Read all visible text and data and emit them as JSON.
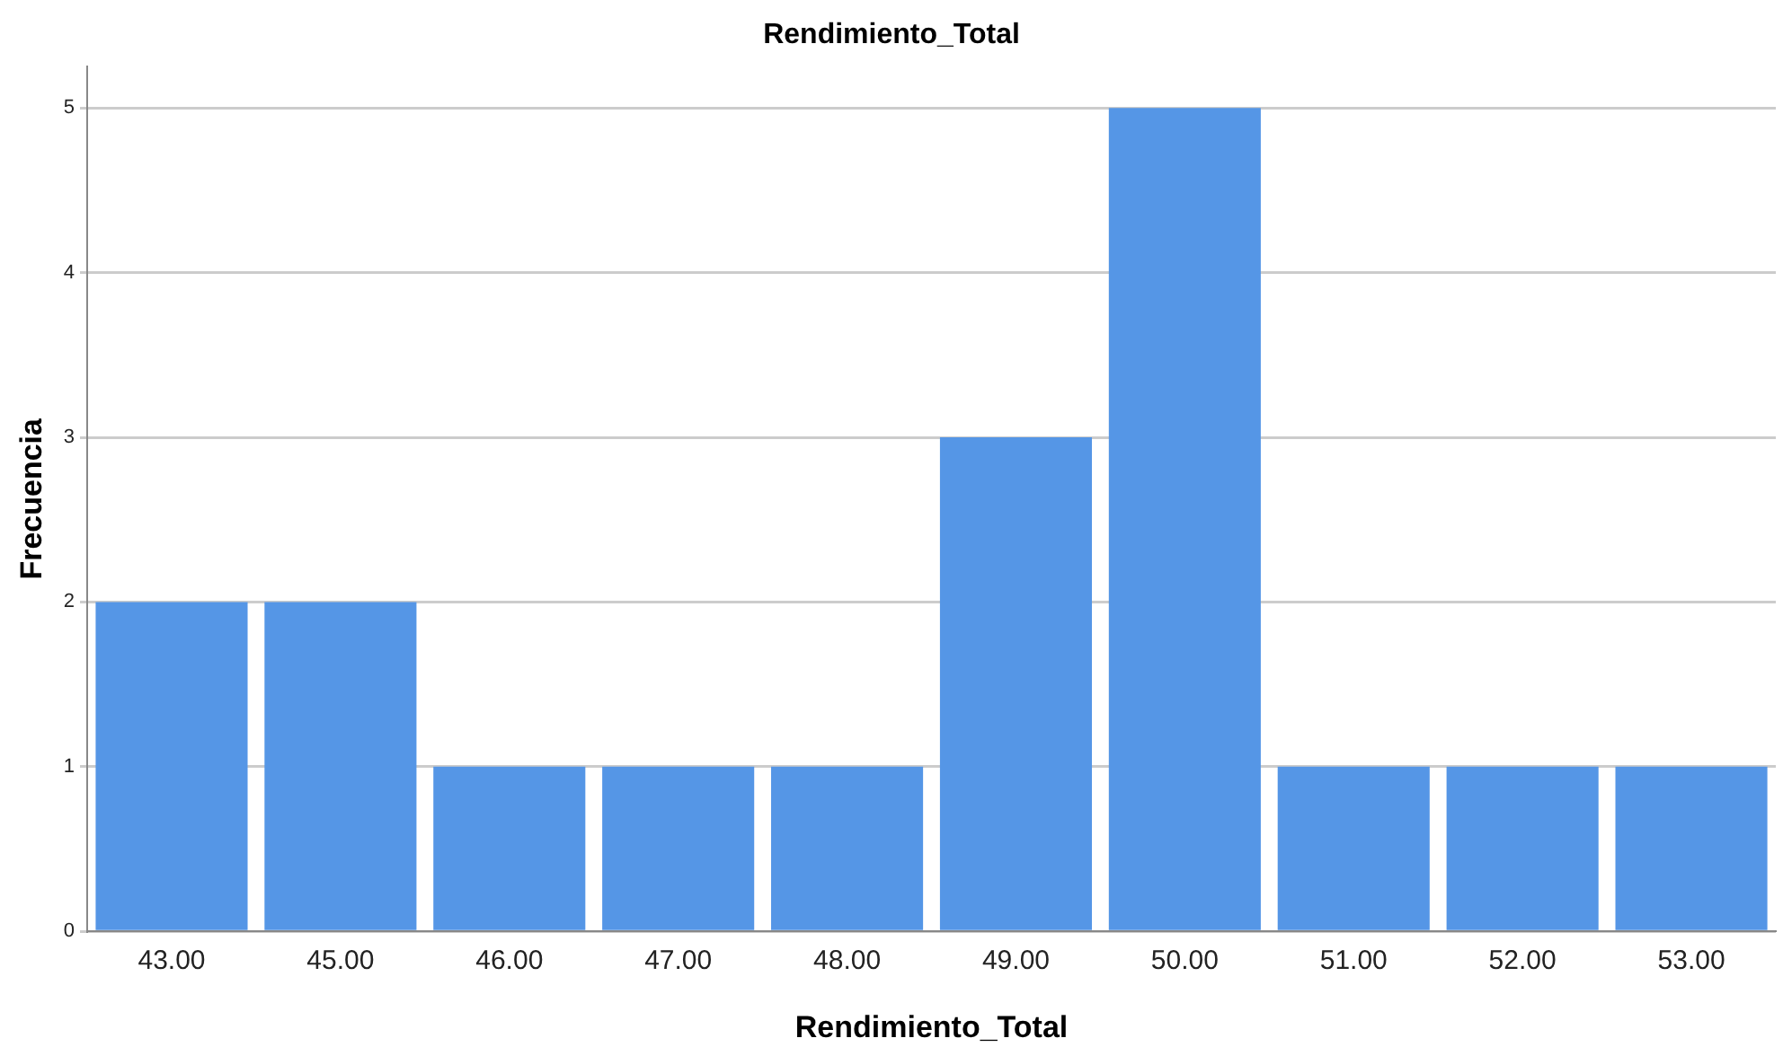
{
  "chart_data": {
    "type": "bar",
    "title": "Rendimiento_Total",
    "xlabel": "Rendimiento_Total",
    "ylabel": "Frecuencia",
    "categories": [
      "43.00",
      "45.00",
      "46.00",
      "47.00",
      "48.00",
      "49.00",
      "50.00",
      "51.00",
      "52.00",
      "53.00"
    ],
    "values": [
      2,
      2,
      1,
      1,
      1,
      3,
      5,
      1,
      1,
      1
    ],
    "color": "#5596e6",
    "ylim": [
      0,
      5.25
    ],
    "yticks": [
      0,
      1,
      2,
      3,
      4,
      5
    ],
    "grid": "y",
    "legend": false
  }
}
